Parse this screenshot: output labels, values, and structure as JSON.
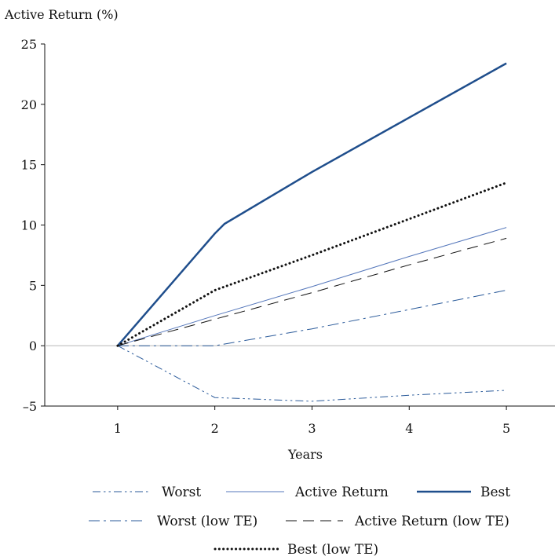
{
  "chart_data": {
    "type": "line",
    "ylabel": "Active Return (%)",
    "xlabel": "Years",
    "x": [
      1,
      2,
      3,
      4,
      5
    ],
    "xlim": [
      0.25,
      5.5
    ],
    "ylim": [
      -5,
      25
    ],
    "yticks": [
      -5,
      0,
      5,
      10,
      15,
      20,
      25
    ],
    "ytick_labels": [
      "–5",
      "0",
      "5",
      "10",
      "15",
      "20",
      "25"
    ],
    "xticks": [
      1,
      2,
      3,
      4,
      5
    ],
    "xtick_labels": [
      "1",
      "2",
      "3",
      "4",
      "5"
    ],
    "grid": false,
    "legend_position": "bottom",
    "series": [
      {
        "name": "Worst",
        "style": "dashdotdot",
        "width": 1,
        "color": "#2a5a9a",
        "x": [
          1,
          2,
          3,
          4,
          5
        ],
        "values": [
          0,
          -4.3,
          -4.6,
          -4.1,
          -3.7
        ]
      },
      {
        "name": "Active Return",
        "style": "solid",
        "width": 1,
        "color": "#5577bb",
        "x": [
          1,
          2,
          3,
          4,
          5
        ],
        "values": [
          0,
          2.5,
          4.9,
          7.4,
          9.8
        ]
      },
      {
        "name": "Best",
        "style": "solid",
        "width": 2.5,
        "color": "#1f4e8c",
        "x": [
          1,
          2,
          2.1,
          3,
          4,
          5
        ],
        "values": [
          0,
          9.3,
          10.1,
          14.4,
          18.9,
          23.4
        ]
      },
      {
        "name": "Worst (low TE)",
        "style": "dashdot",
        "width": 1,
        "color": "#2a5a9a",
        "x": [
          1,
          2,
          3,
          4,
          5
        ],
        "values": [
          0,
          0,
          1.4,
          3.0,
          4.6
        ]
      },
      {
        "name": "Active Return (low TE)",
        "style": "dashed",
        "width": 1,
        "color": "#111111",
        "x": [
          1,
          2,
          3,
          4,
          5
        ],
        "values": [
          0,
          2.2,
          4.4,
          6.7,
          8.9
        ]
      },
      {
        "name": "Best (low TE)",
        "style": "dotted",
        "width": 3,
        "color": "#111111",
        "x": [
          1,
          2,
          3,
          4,
          5
        ],
        "values": [
          0,
          4.6,
          7.5,
          10.5,
          13.5
        ]
      }
    ]
  }
}
